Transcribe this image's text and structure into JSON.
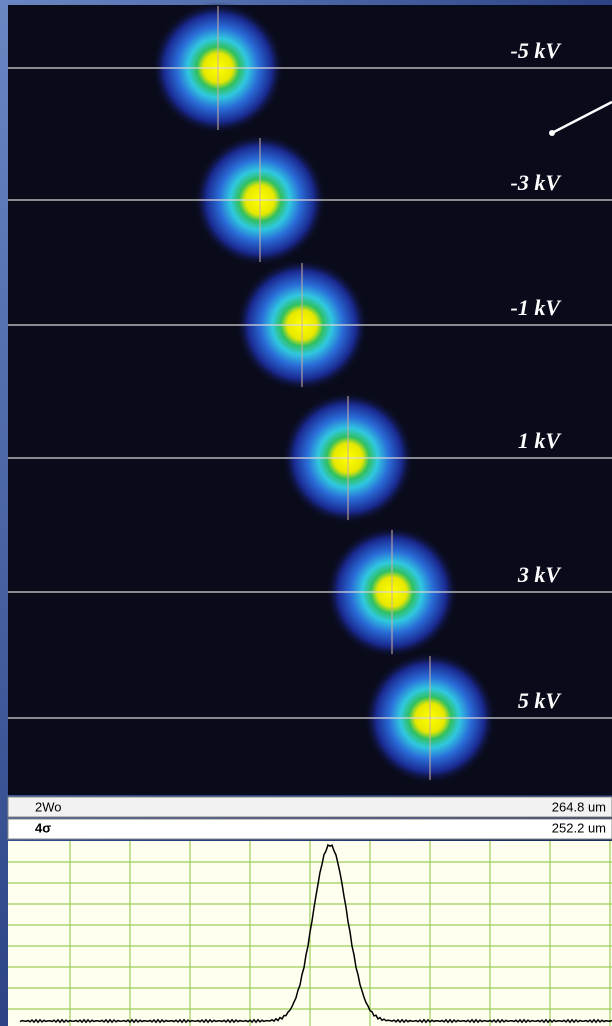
{
  "image": {
    "labels": [
      "-5 kV",
      "-3 kV",
      "-1 kV",
      "1 kV",
      "3 kV",
      "5 kV"
    ]
  },
  "measurements": {
    "rows": [
      [
        "2Wo",
        "264.8 um"
      ],
      [
        "4σ",
        "252.2 um"
      ]
    ]
  }
}
